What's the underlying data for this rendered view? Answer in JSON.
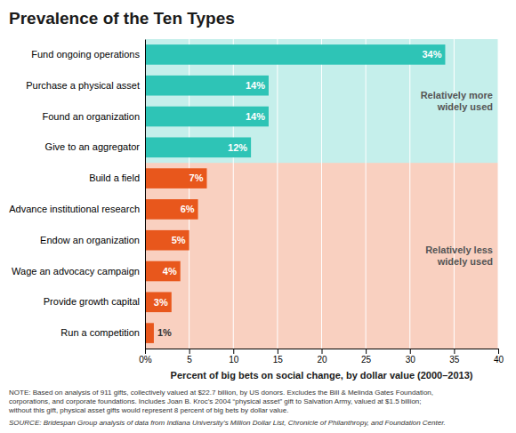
{
  "chart_data": {
    "type": "bar",
    "orientation": "horizontal",
    "title": "Prevalence of the Ten Types",
    "categories": [
      "Fund ongoing operations",
      "Purchase a physical asset",
      "Found an organization",
      "Give to an aggregator",
      "Build a field",
      "Advance institutional research",
      "Endow an organization",
      "Wage an advocacy campaign",
      "Provide growth capital",
      "Run a competition"
    ],
    "values": [
      34,
      14,
      14,
      12,
      7,
      6,
      5,
      4,
      3,
      1
    ],
    "value_labels": [
      "34%",
      "14%",
      "14%",
      "12%",
      "7%",
      "6%",
      "5%",
      "4%",
      "3%",
      "1%"
    ],
    "data_labels": true,
    "colors": [
      "#2ec4b6",
      "#2ec4b6",
      "#2ec4b6",
      "#2ec4b6",
      "#e8571c",
      "#e8571c",
      "#e8571c",
      "#e8571c",
      "#e8571c",
      "#e8571c"
    ],
    "xlabel": "Percent of big bets on social change, by dollar value (2000–2013)",
    "xlim": [
      0,
      40
    ],
    "xticks": [
      {
        "value": 0,
        "label": "0%"
      },
      5,
      10,
      15,
      20,
      25,
      30,
      35,
      40
    ],
    "grid": true,
    "annotations": [
      "Relatively more\nwidely used",
      "Relatively less\nwidely used"
    ],
    "note": "NOTE: Based on analysis of 911 gifts, collectively valued at $22.7 billion, by US donors. Excludes the Bill & Melinda Gates Foundation,\ncorporations, and corporate foundations. Includes Joan B. Kroc’s 2004 “physical asset” gift to Salvation Army, valued at $1.5 billion;\nwithout this gift, physical asset gifts would represent 8 percent of big bets by dollar value.",
    "source": "SOURCE: Bridespan Group analysis of data from Indiana University’s Million Dollar List, Chronicle of Philanthropy, and Foundation Center."
  }
}
